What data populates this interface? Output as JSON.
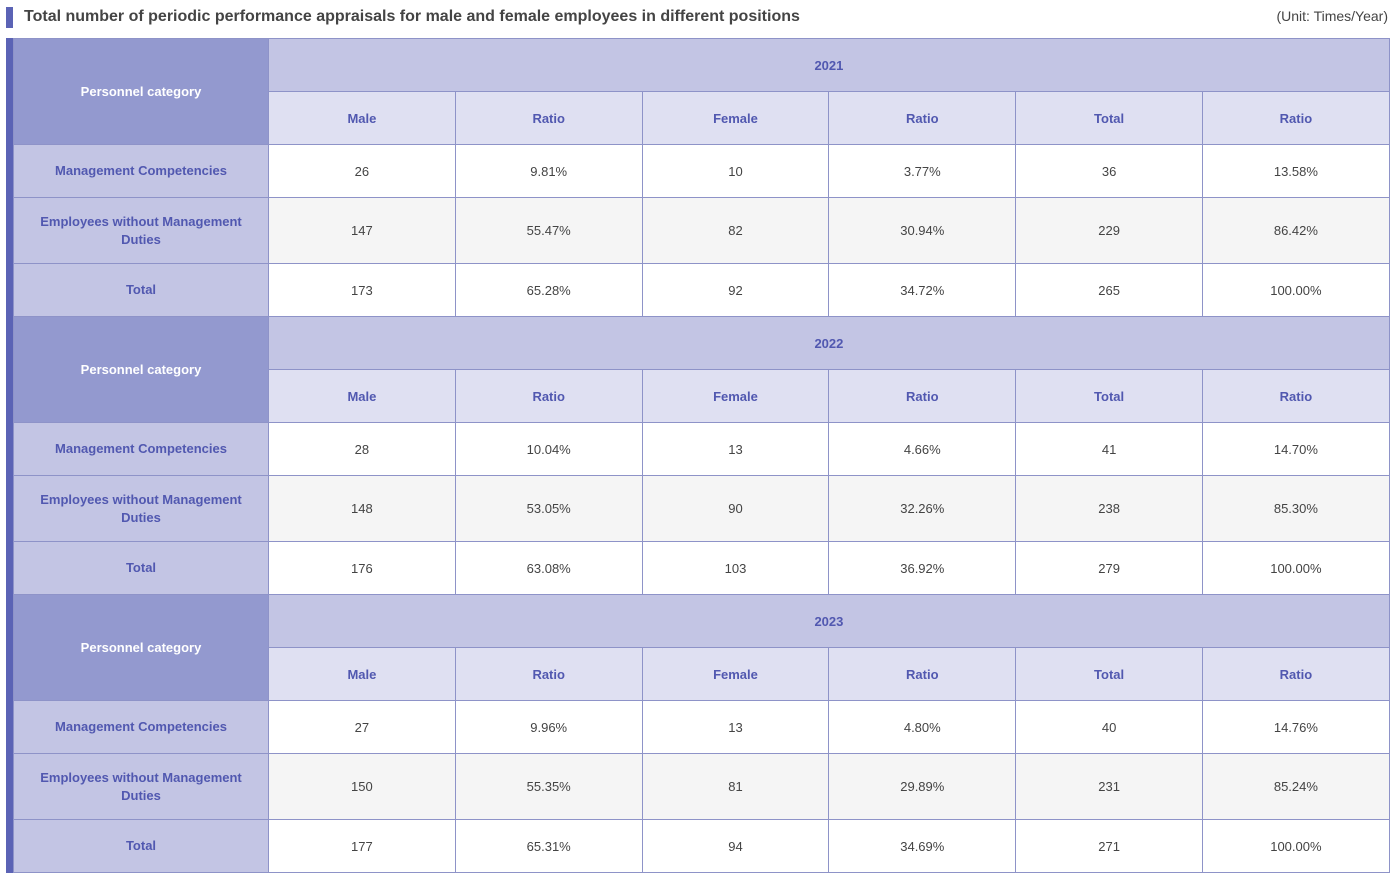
{
  "header": {
    "title": "Total number of periodic performance appraisals for male and female employees in different positions",
    "unit": "(Unit: Times/Year)"
  },
  "columns": {
    "category": "Personnel category",
    "male": "Male",
    "ratio": "Ratio",
    "female": "Female",
    "total": "Total"
  },
  "rows": {
    "management": "Management Competencies",
    "non_management": "Employees without Management Duties",
    "total": "Total"
  },
  "years": [
    {
      "year": "2021",
      "management": [
        "26",
        "9.81%",
        "10",
        "3.77%",
        "36",
        "13.58%"
      ],
      "non_management": [
        "147",
        "55.47%",
        "82",
        "30.94%",
        "229",
        "86.42%"
      ],
      "total": [
        "173",
        "65.28%",
        "92",
        "34.72%",
        "265",
        "100.00%"
      ]
    },
    {
      "year": "2022",
      "management": [
        "28",
        "10.04%",
        "13",
        "4.66%",
        "41",
        "14.70%"
      ],
      "non_management": [
        "148",
        "53.05%",
        "90",
        "32.26%",
        "238",
        "85.30%"
      ],
      "total": [
        "176",
        "63.08%",
        "103",
        "36.92%",
        "279",
        "100.00%"
      ]
    },
    {
      "year": "2023",
      "management": [
        "27",
        "9.96%",
        "13",
        "4.80%",
        "40",
        "14.76%"
      ],
      "non_management": [
        "150",
        "55.35%",
        "81",
        "29.89%",
        "231",
        "85.24%"
      ],
      "total": [
        "177",
        "65.31%",
        "94",
        "34.69%",
        "271",
        "100.00%"
      ]
    }
  ],
  "colors": {
    "accent": "#5b63b5",
    "category_header": "#9399cf",
    "year_header": "#c3c5e4",
    "sub_header": "#dfe0f2",
    "label_text": "#5158b0"
  }
}
